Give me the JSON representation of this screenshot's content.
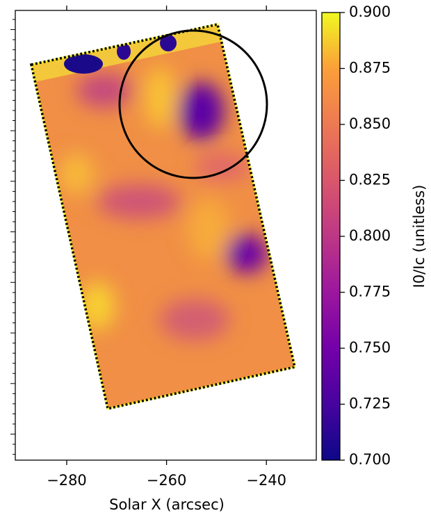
{
  "chart_data": {
    "type": "heatmap",
    "xlabel": "Solar X (arcsec)",
    "xlim": [
      -290.3,
      -230
    ],
    "xticks": [
      {
        "value": -280,
        "label": "−280"
      },
      {
        "value": -260,
        "label": "−260"
      },
      {
        "value": -240,
        "label": "−240"
      }
    ],
    "colormap": "plasma",
    "colorbar": {
      "label": "I0/Ic (unitless)",
      "clim": [
        0.7,
        0.9
      ],
      "ticks": [
        {
          "value": 0.7,
          "label": "0.700"
        },
        {
          "value": 0.725,
          "label": "0.725"
        },
        {
          "value": 0.75,
          "label": "0.750"
        },
        {
          "value": 0.775,
          "label": "0.775"
        },
        {
          "value": 0.8,
          "label": "0.800"
        },
        {
          "value": 0.825,
          "label": "0.825"
        },
        {
          "value": 0.85,
          "label": "0.850"
        },
        {
          "value": 0.875,
          "label": "0.875"
        },
        {
          "value": 0.9,
          "label": "0.900"
        }
      ]
    }
  }
}
